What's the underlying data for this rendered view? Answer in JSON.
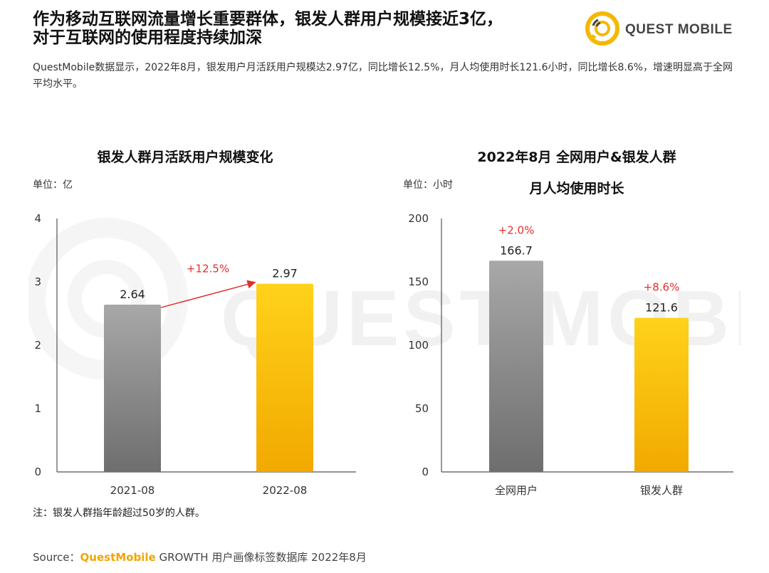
{
  "headline": {
    "line1": "作为移动互联网流量增长重要群体，银发人群用户规模接近3亿，",
    "line2": "对于互联网的使用程度持续加深"
  },
  "logo": {
    "text": "QUEST MOBILE"
  },
  "summary": "QuestMobile数据显示，2022年8月，银发用户月活跃用户规模达2.97亿，同比增长12.5%，月人均使用时长121.6小时，同比增长8.6%，增速明显高于全网平均水平。",
  "watermark": "QUEST MOBILE",
  "footnote": "注：银发人群指年龄超过50岁的人群。",
  "source": {
    "prefix": "Source：",
    "brand": "QuestMobile",
    "rest": " GROWTH 用户画像标签数据库 2022年8月"
  },
  "colors": {
    "gray_top": "#a8a8a8",
    "gray_bottom": "#6e6e6e",
    "yellow_top": "#ffd21a",
    "yellow_bottom": "#f2a900",
    "growth_red": "#e0302c",
    "axis": "#555555"
  },
  "chart_data": [
    {
      "type": "bar",
      "title": "银发人群月活跃用户规模变化",
      "unit": "单位：亿",
      "categories": [
        "2021-08",
        "2022-08"
      ],
      "values": [
        2.64,
        2.97
      ],
      "value_labels": [
        "2.64",
        "2.97"
      ],
      "ylim": [
        0,
        4
      ],
      "yticks": [
        0,
        1,
        2,
        3,
        4
      ],
      "annotation": "+12.5%",
      "colors": [
        "gray",
        "yellow"
      ]
    },
    {
      "type": "bar",
      "title_line1": "2022年8月 全网用户&银发人群",
      "title_line2": "月人均使用时长",
      "unit": "单位：小时",
      "categories": [
        "全网用户",
        "银发人群"
      ],
      "values": [
        166.7,
        121.6
      ],
      "value_labels": [
        "166.7",
        "121.6"
      ],
      "growth": [
        "+2.0%",
        "+8.6%"
      ],
      "ylim": [
        0,
        200
      ],
      "yticks": [
        0,
        50,
        100,
        150,
        200
      ],
      "colors": [
        "gray",
        "yellow"
      ]
    }
  ]
}
